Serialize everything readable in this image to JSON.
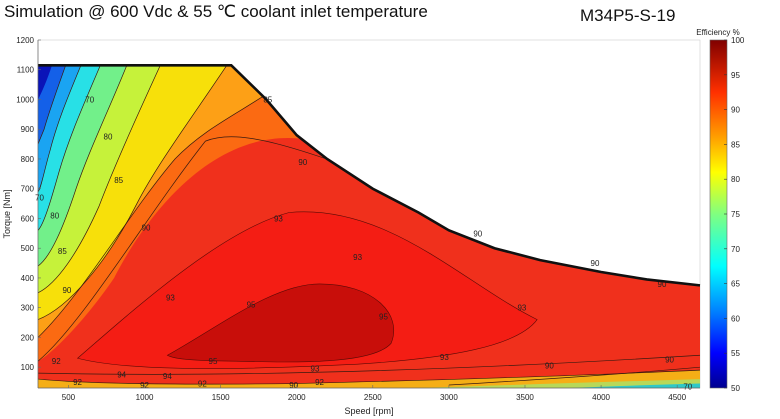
{
  "header": {
    "title": "Simulation @ 600 Vdc & 55 ℃ coolant inlet temperature",
    "model": "M34P5-S-19"
  },
  "chart_data": {
    "type": "heatmap",
    "xlabel": "Speed [rpm]",
    "ylabel": "Torque [Nm]",
    "xlim": [
      300,
      4650
    ],
    "ylim": [
      30,
      1200
    ],
    "xticks": [
      500,
      1000,
      1500,
      2000,
      2500,
      3000,
      3500,
      4000,
      4500
    ],
    "yticks": [
      100,
      200,
      300,
      400,
      500,
      600,
      700,
      800,
      900,
      1000,
      1100,
      1200
    ],
    "colorbar": {
      "title": "Efficiency %",
      "ticks": [
        50,
        55,
        60,
        65,
        70,
        75,
        80,
        85,
        90,
        95,
        100
      ],
      "range": [
        50,
        100
      ]
    },
    "max_torque_curve": [
      [
        300,
        1115
      ],
      [
        1570,
        1115
      ],
      [
        1800,
        1000
      ],
      [
        2000,
        880
      ],
      [
        2200,
        800
      ],
      [
        2500,
        700
      ],
      [
        2800,
        620
      ],
      [
        3000,
        560
      ],
      [
        3300,
        500
      ],
      [
        3600,
        460
      ],
      [
        4000,
        420
      ],
      [
        4300,
        395
      ],
      [
        4650,
        375
      ]
    ],
    "contour_labels": [
      {
        "text": "70",
        "x": 640,
        "y": 1000
      },
      {
        "text": "80",
        "x": 760,
        "y": 875
      },
      {
        "text": "85",
        "x": 830,
        "y": 730
      },
      {
        "text": "90",
        "x": 1010,
        "y": 570
      },
      {
        "text": "85",
        "x": 1810,
        "y": 1000
      },
      {
        "text": "90",
        "x": 2040,
        "y": 790
      },
      {
        "text": "90",
        "x": 3190,
        "y": 550
      },
      {
        "text": "90",
        "x": 3960,
        "y": 450
      },
      {
        "text": "90",
        "x": 4400,
        "y": 380
      },
      {
        "text": "93",
        "x": 1880,
        "y": 600
      },
      {
        "text": "93",
        "x": 2400,
        "y": 470
      },
      {
        "text": "93",
        "x": 1170,
        "y": 335
      },
      {
        "text": "93",
        "x": 3480,
        "y": 300
      },
      {
        "text": "93",
        "x": 2970,
        "y": 135
      },
      {
        "text": "95",
        "x": 1700,
        "y": 310
      },
      {
        "text": "95",
        "x": 2570,
        "y": 270
      },
      {
        "text": "95",
        "x": 1450,
        "y": 120
      },
      {
        "text": "70",
        "x": 310,
        "y": 670
      },
      {
        "text": "80",
        "x": 410,
        "y": 610
      },
      {
        "text": "85",
        "x": 460,
        "y": 490
      },
      {
        "text": "90",
        "x": 490,
        "y": 360
      },
      {
        "text": "92",
        "x": 420,
        "y": 120
      },
      {
        "text": "92",
        "x": 560,
        "y": 50
      },
      {
        "text": "94",
        "x": 850,
        "y": 75
      },
      {
        "text": "94",
        "x": 1150,
        "y": 70
      },
      {
        "text": "92",
        "x": 1000,
        "y": 40
      },
      {
        "text": "92",
        "x": 1380,
        "y": 45
      },
      {
        "text": "92",
        "x": 2150,
        "y": 50
      },
      {
        "text": "90",
        "x": 1980,
        "y": 40
      },
      {
        "text": "93",
        "x": 2120,
        "y": 95
      },
      {
        "text": "90",
        "x": 3660,
        "y": 105
      },
      {
        "text": "90",
        "x": 4450,
        "y": 125
      },
      {
        "text": "70",
        "x": 4570,
        "y": 35
      }
    ]
  }
}
